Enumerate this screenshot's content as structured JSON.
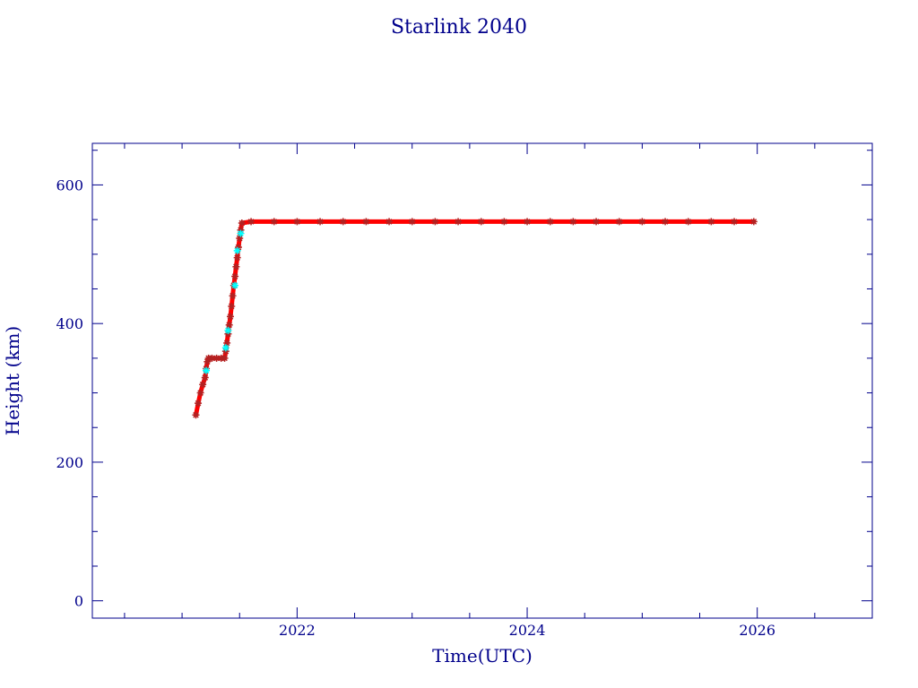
{
  "chart_data": {
    "type": "scatter",
    "title": "Starlink 2040",
    "xlabel": "Time(UTC)",
    "ylabel": "Height (km)",
    "xlim": [
      2020.22,
      2027.0
    ],
    "ylim": [
      -25,
      660
    ],
    "x_major_ticks": [
      2022,
      2024,
      2026
    ],
    "x_minor_step": 0.5,
    "y_major_ticks": [
      0,
      200,
      400,
      600
    ],
    "y_minor_step": 50,
    "grid": false,
    "legend": "none",
    "colors": {
      "axes": "#00008b",
      "main_series": "#ff0000",
      "main_series_edge": "#b22222",
      "highlight_series": "#00ffff"
    },
    "series": [
      {
        "marker": "star",
        "color": "#ff0000",
        "points": [
          [
            2021.12,
            268
          ],
          [
            2021.14,
            285
          ],
          [
            2021.16,
            300
          ],
          [
            2021.18,
            312
          ],
          [
            2021.2,
            322
          ],
          [
            2021.21,
            335
          ],
          [
            2021.22,
            345
          ],
          [
            2021.23,
            350
          ],
          [
            2021.26,
            350
          ],
          [
            2021.3,
            350
          ],
          [
            2021.34,
            350
          ],
          [
            2021.37,
            350
          ],
          [
            2021.38,
            360
          ],
          [
            2021.39,
            372
          ],
          [
            2021.4,
            385
          ],
          [
            2021.41,
            398
          ],
          [
            2021.42,
            410
          ],
          [
            2021.43,
            425
          ],
          [
            2021.44,
            440
          ],
          [
            2021.45,
            455
          ],
          [
            2021.46,
            468
          ],
          [
            2021.47,
            482
          ],
          [
            2021.48,
            495
          ],
          [
            2021.49,
            510
          ],
          [
            2021.5,
            523
          ],
          [
            2021.51,
            535
          ],
          [
            2021.52,
            545
          ],
          [
            2021.6,
            547
          ],
          [
            2021.8,
            547
          ],
          [
            2022.0,
            547
          ],
          [
            2022.2,
            547
          ],
          [
            2022.4,
            547
          ],
          [
            2022.6,
            547
          ],
          [
            2022.8,
            547
          ],
          [
            2023.0,
            547
          ],
          [
            2023.2,
            547
          ],
          [
            2023.4,
            547
          ],
          [
            2023.6,
            547
          ],
          [
            2023.8,
            547
          ],
          [
            2024.0,
            547
          ],
          [
            2024.2,
            547
          ],
          [
            2024.4,
            547
          ],
          [
            2024.6,
            547
          ],
          [
            2024.8,
            547
          ],
          [
            2025.0,
            547
          ],
          [
            2025.2,
            547
          ],
          [
            2025.4,
            547
          ],
          [
            2025.6,
            547
          ],
          [
            2025.8,
            547
          ],
          [
            2025.97,
            547
          ]
        ]
      },
      {
        "marker": "star",
        "color": "#00ffff",
        "points": [
          [
            2021.21,
            332
          ],
          [
            2021.38,
            365
          ],
          [
            2021.4,
            390
          ],
          [
            2021.46,
            455
          ],
          [
            2021.48,
            505
          ],
          [
            2021.51,
            530
          ]
        ]
      }
    ]
  }
}
